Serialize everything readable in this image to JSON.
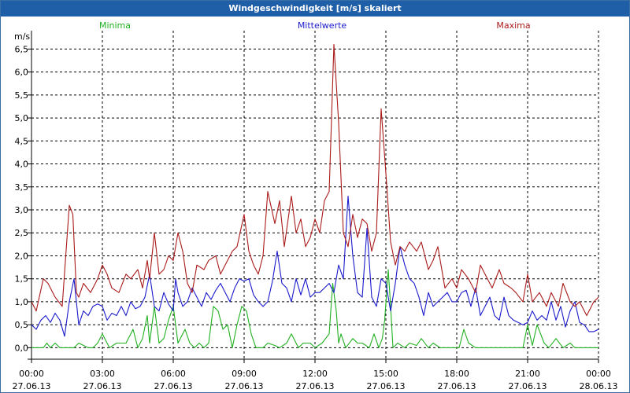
{
  "window": {
    "title": "Windgeschwindigkeit [m/s] skaliert"
  },
  "chart_data": {
    "type": "line",
    "title": "Windgeschwindigkeit [m/s] skaliert",
    "ylabel": "m/s",
    "xlabel": "",
    "ylim": [
      -0.25,
      6.9
    ],
    "grid": true,
    "yticks": [
      0.0,
      0.5,
      1.0,
      1.5,
      2.0,
      2.5,
      3.0,
      3.5,
      4.0,
      4.5,
      5.0,
      5.5,
      6.0,
      6.5
    ],
    "ytick_labels": [
      "0,0",
      "0,5",
      "1,0",
      "1,5",
      "2,0",
      "2,5",
      "3,0",
      "3,5",
      "4,0",
      "4,5",
      "5,0",
      "5,5",
      "6,0",
      "6,5"
    ],
    "xlim": [
      0,
      24
    ],
    "xticks": [
      {
        "value": 0,
        "time": "00:00",
        "date": "27.06.13"
      },
      {
        "value": 3,
        "time": "03:00",
        "date": "27.06.13"
      },
      {
        "value": 6,
        "time": "06:00",
        "date": "27.06.13"
      },
      {
        "value": 9,
        "time": "09:00",
        "date": "27.06.13"
      },
      {
        "value": 12,
        "time": "12:00",
        "date": "27.06.13"
      },
      {
        "value": 15,
        "time": "15:00",
        "date": "27.06.13"
      },
      {
        "value": 18,
        "time": "18:00",
        "date": "27.06.13"
      },
      {
        "value": 21,
        "time": "21:00",
        "date": "27.06.13"
      },
      {
        "value": 24,
        "time": "00:00",
        "date": "28.06.13"
      }
    ],
    "series": [
      {
        "name": "Minima",
        "color": "#20b020",
        "x": [
          0,
          0.5,
          0.65,
          0.8,
          1.0,
          1.2,
          1.5,
          1.8,
          2.0,
          2.4,
          2.5,
          2.6,
          2.8,
          3.0,
          3.3,
          3.6,
          3.8,
          4.0,
          4.3,
          4.5,
          4.7,
          4.9,
          5.0,
          5.2,
          5.4,
          5.6,
          5.8,
          6.0,
          6.2,
          6.5,
          6.7,
          6.9,
          7.1,
          7.3,
          7.5,
          7.7,
          7.9,
          8.1,
          8.3,
          8.5,
          8.7,
          8.9,
          9.1,
          9.3,
          9.5,
          9.8,
          10.0,
          10.3,
          10.5,
          10.8,
          11.0,
          11.3,
          11.5,
          11.8,
          12.0,
          12.3,
          12.6,
          12.75,
          12.9,
          13.0,
          13.1,
          13.3,
          13.6,
          13.8,
          14.0,
          14.3,
          14.5,
          14.7,
          14.85,
          14.95,
          15.1,
          15.2,
          15.3,
          15.5,
          15.8,
          16.0,
          16.3,
          16.5,
          16.8,
          17.0,
          17.3,
          17.6,
          17.9,
          18.0,
          18.1,
          18.3,
          18.5,
          18.8,
          19.0,
          19.5,
          20.0,
          20.5,
          20.8,
          21.0,
          21.2,
          21.4,
          21.7,
          21.9,
          22.2,
          22.5,
          22.8,
          23.0,
          23.5,
          24.0
        ],
        "y": [
          0,
          0,
          0.1,
          0,
          0.1,
          0,
          0,
          0,
          0.1,
          0,
          0,
          0,
          0.1,
          0.3,
          0,
          0.1,
          0.1,
          0.1,
          0.4,
          0,
          0.2,
          0.7,
          0.1,
          0.9,
          0.1,
          0.2,
          0.6,
          0.9,
          0.1,
          0.4,
          0.1,
          0,
          0.1,
          0,
          0.1,
          0.9,
          0.8,
          0.4,
          0.5,
          0,
          0.5,
          0.9,
          0.8,
          0.3,
          0,
          0,
          0.1,
          0.05,
          0,
          0.1,
          0.3,
          0,
          0.1,
          0.1,
          0,
          0.1,
          0.3,
          1.4,
          0.8,
          0.1,
          0.3,
          0,
          0.2,
          0.1,
          0.1,
          0,
          0.3,
          0,
          0.2,
          0.6,
          1.7,
          0.9,
          0,
          0.1,
          0,
          0.1,
          0.05,
          0.2,
          0,
          0.1,
          0,
          0,
          0,
          0,
          0,
          0.4,
          0.1,
          0,
          0,
          0,
          0,
          0,
          0,
          0.5,
          0.05,
          0.5,
          0.1,
          0,
          0.2,
          0,
          0.1,
          0,
          0,
          0
        ]
      },
      {
        "name": "Mittelwerte",
        "color": "#1a1acc",
        "x": [
          0,
          0.2,
          0.4,
          0.6,
          0.8,
          1.0,
          1.2,
          1.4,
          1.6,
          1.8,
          2.0,
          2.2,
          2.4,
          2.6,
          2.8,
          3.0,
          3.2,
          3.4,
          3.6,
          3.8,
          4.0,
          4.2,
          4.4,
          4.6,
          4.8,
          5.0,
          5.2,
          5.4,
          5.6,
          5.8,
          6.0,
          6.1,
          6.2,
          6.4,
          6.6,
          6.8,
          7.0,
          7.2,
          7.4,
          7.6,
          7.8,
          8.0,
          8.2,
          8.4,
          8.6,
          8.8,
          9.0,
          9.2,
          9.4,
          9.6,
          9.8,
          10.0,
          10.2,
          10.4,
          10.6,
          10.8,
          11.0,
          11.2,
          11.4,
          11.6,
          11.8,
          12.0,
          12.2,
          12.4,
          12.6,
          12.8,
          13.0,
          13.2,
          13.4,
          13.6,
          13.8,
          14.0,
          14.2,
          14.4,
          14.6,
          14.8,
          15.0,
          15.2,
          15.4,
          15.6,
          15.8,
          16.0,
          16.2,
          16.4,
          16.6,
          16.8,
          17.0,
          17.2,
          17.4,
          17.6,
          17.8,
          18.0,
          18.2,
          18.4,
          18.6,
          18.8,
          19.0,
          19.2,
          19.4,
          19.6,
          19.8,
          20.0,
          20.2,
          20.4,
          20.6,
          20.8,
          21.0,
          21.2,
          21.4,
          21.6,
          21.8,
          22.0,
          22.2,
          22.4,
          22.6,
          22.8,
          23.0,
          23.2,
          23.4,
          23.6,
          23.8,
          24.0
        ],
        "y": [
          0.5,
          0.4,
          0.6,
          0.7,
          0.55,
          0.75,
          0.6,
          0.25,
          1.0,
          1.5,
          0.5,
          0.8,
          0.7,
          0.9,
          0.95,
          0.9,
          0.6,
          0.75,
          0.7,
          0.9,
          0.7,
          1.0,
          0.85,
          0.9,
          1.1,
          1.6,
          0.9,
          0.8,
          1.2,
          0.95,
          0.8,
          1.5,
          1.2,
          0.9,
          1.0,
          1.3,
          1.1,
          0.9,
          1.2,
          1.05,
          1.25,
          1.4,
          1.2,
          1.0,
          1.3,
          1.5,
          1.45,
          1.5,
          1.15,
          1.0,
          0.9,
          1.0,
          1.45,
          2.1,
          1.4,
          1.3,
          1.0,
          1.5,
          1.15,
          1.5,
          1.1,
          1.2,
          1.2,
          1.3,
          1.4,
          1.2,
          1.8,
          1.5,
          3.3,
          2.0,
          1.2,
          1.1,
          2.6,
          1.1,
          0.9,
          1.5,
          1.4,
          0.8,
          1.4,
          2.2,
          1.8,
          1.5,
          1.4,
          1.1,
          0.7,
          1.2,
          0.9,
          1.0,
          1.1,
          1.2,
          1.0,
          1.0,
          1.2,
          1.25,
          0.9,
          1.3,
          0.7,
          0.9,
          1.1,
          0.7,
          0.6,
          1.1,
          0.7,
          0.6,
          0.55,
          0.5,
          0.55,
          0.8,
          0.6,
          0.7,
          0.6,
          1.0,
          0.6,
          0.9,
          0.45,
          0.8,
          1.0,
          0.55,
          0.5,
          0.35,
          0.35,
          0.4
        ]
      },
      {
        "name": "Maxima",
        "color": "#aa1a1a",
        "x": [
          0,
          0.2,
          0.5,
          0.7,
          1.0,
          1.3,
          1.6,
          1.75,
          1.9,
          2.0,
          2.2,
          2.5,
          2.8,
          3.0,
          3.2,
          3.4,
          3.7,
          4.0,
          4.2,
          4.5,
          4.7,
          4.9,
          5.0,
          5.2,
          5.4,
          5.6,
          5.8,
          6.0,
          6.2,
          6.4,
          6.6,
          6.8,
          7.0,
          7.3,
          7.5,
          7.8,
          8.0,
          8.3,
          8.5,
          8.7,
          9.0,
          9.2,
          9.4,
          9.6,
          9.8,
          10.0,
          10.3,
          10.5,
          10.7,
          11.0,
          11.2,
          11.4,
          11.6,
          11.8,
          12.0,
          12.2,
          12.4,
          12.6,
          12.8,
          13.0,
          13.2,
          13.4,
          13.6,
          13.8,
          14.0,
          14.2,
          14.4,
          14.6,
          14.8,
          15.0,
          15.2,
          15.4,
          15.6,
          15.8,
          16.0,
          16.3,
          16.5,
          16.8,
          17.0,
          17.2,
          17.5,
          17.8,
          18.0,
          18.2,
          18.5,
          18.8,
          19.0,
          19.3,
          19.5,
          19.8,
          20.0,
          20.3,
          20.5,
          20.8,
          21.0,
          21.2,
          21.5,
          21.8,
          22.0,
          22.3,
          22.5,
          22.8,
          23.0,
          23.2,
          23.5,
          23.8,
          24.0
        ],
        "y": [
          1.0,
          0.8,
          1.5,
          1.4,
          1.1,
          0.9,
          3.1,
          2.9,
          1.2,
          1.1,
          1.4,
          1.2,
          1.5,
          1.8,
          1.6,
          1.3,
          1.2,
          1.6,
          1.5,
          1.7,
          1.3,
          1.9,
          1.5,
          2.5,
          1.6,
          1.7,
          2.0,
          1.9,
          2.5,
          2.1,
          1.4,
          1.2,
          1.8,
          1.7,
          1.9,
          2.0,
          1.6,
          1.9,
          2.1,
          2.2,
          2.9,
          2.1,
          1.8,
          1.6,
          2.0,
          3.4,
          2.7,
          3.2,
          2.2,
          3.3,
          2.5,
          2.8,
          2.2,
          2.4,
          2.8,
          2.5,
          3.2,
          3.4,
          6.6,
          4.9,
          2.5,
          2.2,
          2.9,
          2.4,
          2.8,
          2.7,
          2.1,
          2.5,
          5.2,
          3.8,
          2.3,
          1.8,
          2.2,
          2.1,
          2.3,
          2.1,
          2.3,
          1.7,
          1.9,
          2.2,
          1.3,
          1.5,
          1.3,
          1.7,
          1.5,
          1.2,
          1.8,
          1.5,
          1.3,
          1.7,
          1.4,
          1.3,
          1.2,
          1.0,
          1.6,
          1.0,
          1.2,
          0.9,
          1.2,
          0.9,
          1.4,
          1.0,
          0.9,
          1.0,
          0.7,
          1.0,
          1.1
        ]
      }
    ]
  }
}
